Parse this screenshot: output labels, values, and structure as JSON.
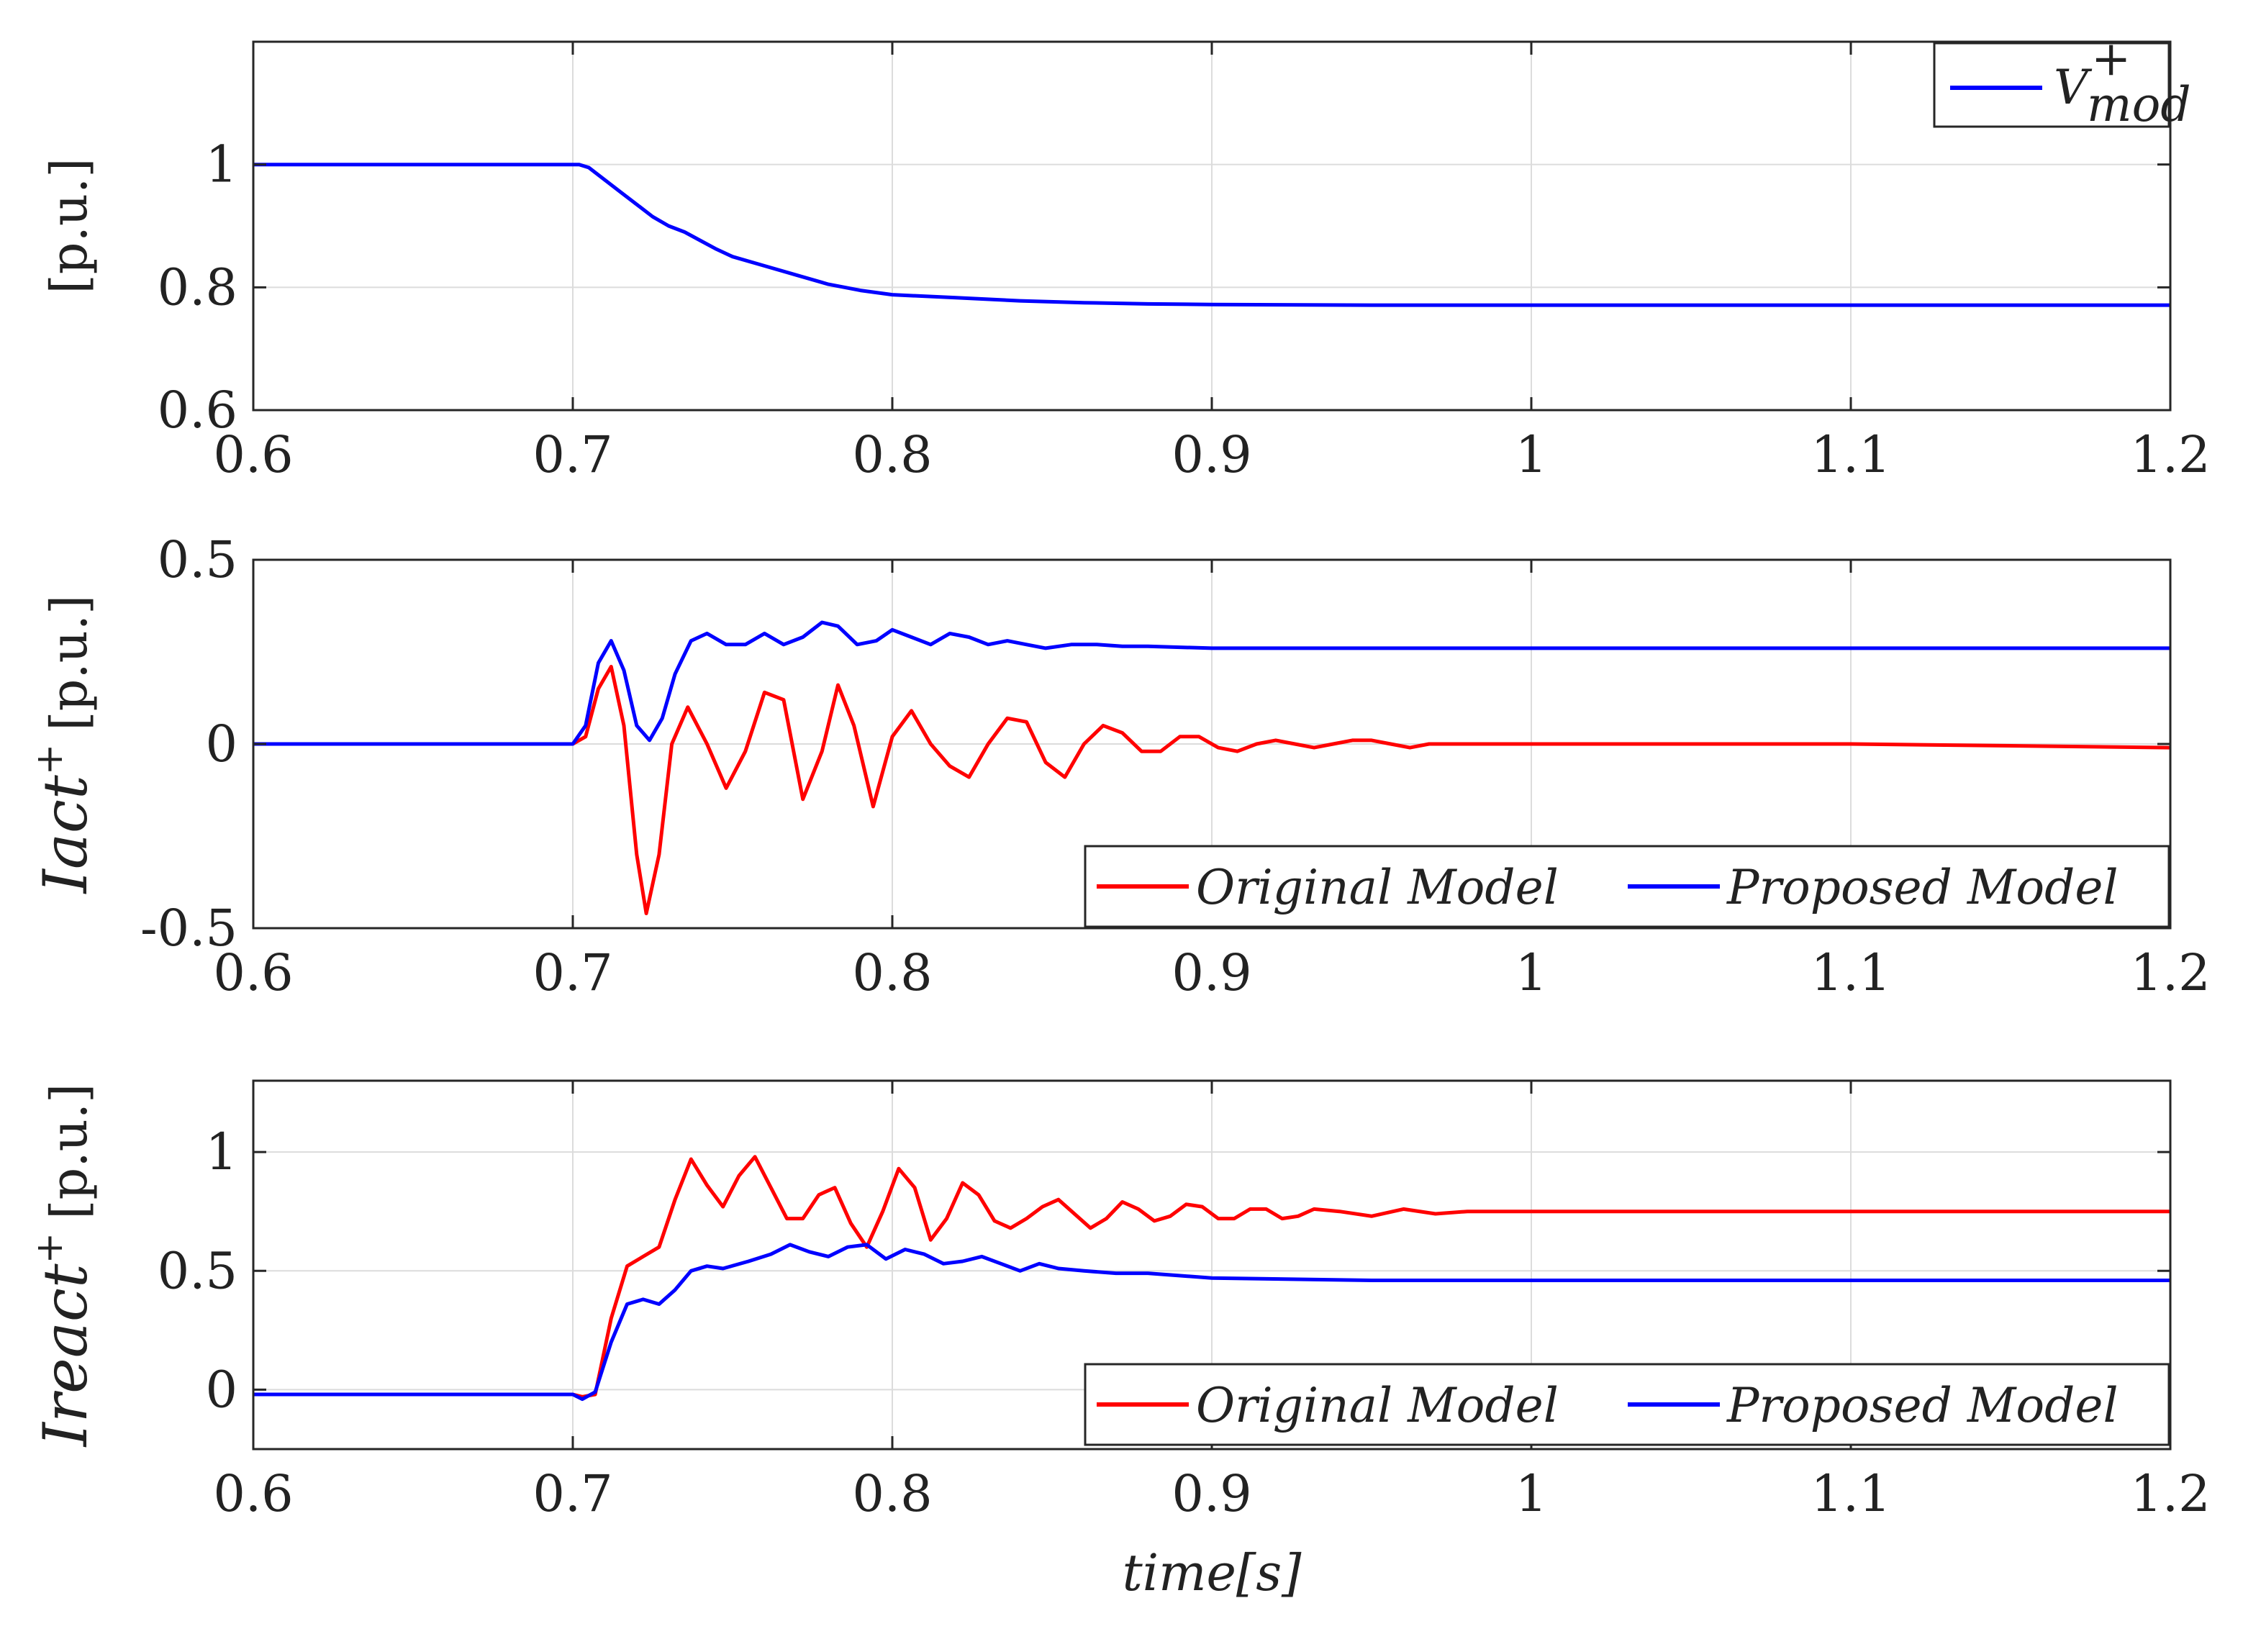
{
  "chart_data": [
    {
      "type": "line",
      "id": "vmod",
      "title": "",
      "xlabel": "",
      "ylabel_main": "[p.u.]",
      "ylabel_prefix": "",
      "ylabel_sup": "",
      "xlim": [
        0.6,
        1.2
      ],
      "ylim": [
        0.6,
        1.2
      ],
      "xticks": [
        0.6,
        0.7,
        0.8,
        0.9,
        1,
        1.1,
        1.2
      ],
      "xtick_labels": [
        "0.6",
        "0.7",
        "0.8",
        "0.9",
        "1",
        "1.1",
        "1.2"
      ],
      "yticks": [
        0.6,
        0.8,
        1
      ],
      "ytick_labels": [
        "0.6",
        "0.8",
        "1"
      ],
      "grid": true,
      "legend_position": "top-right",
      "series": [
        {
          "name": "V",
          "legend_label": "V",
          "legend_sup": "+",
          "legend_sub": "mod",
          "color": "#0000ff",
          "x": [
            0.6,
            0.65,
            0.7,
            0.702,
            0.705,
            0.71,
            0.715,
            0.72,
            0.725,
            0.73,
            0.735,
            0.74,
            0.745,
            0.75,
            0.76,
            0.77,
            0.78,
            0.79,
            0.8,
            0.82,
            0.84,
            0.86,
            0.88,
            0.9,
            0.95,
            1.0,
            1.1,
            1.2
          ],
          "y": [
            1.0,
            1.0,
            1.0,
            1.0,
            0.995,
            0.975,
            0.955,
            0.935,
            0.915,
            0.9,
            0.89,
            0.876,
            0.862,
            0.85,
            0.835,
            0.82,
            0.805,
            0.795,
            0.788,
            0.783,
            0.778,
            0.775,
            0.773,
            0.772,
            0.771,
            0.771,
            0.771,
            0.771
          ]
        }
      ]
    },
    {
      "type": "line",
      "id": "iact",
      "title": "",
      "xlabel": "",
      "ylabel_main": "[p.u.]",
      "ylabel_prefix": "Iact",
      "ylabel_sup": "+",
      "xlim": [
        0.6,
        1.2
      ],
      "ylim": [
        -0.5,
        0.5
      ],
      "xticks": [
        0.6,
        0.7,
        0.8,
        0.9,
        1,
        1.1,
        1.2
      ],
      "xtick_labels": [
        "0.6",
        "0.7",
        "0.8",
        "0.9",
        "1",
        "1.1",
        "1.2"
      ],
      "yticks": [
        -0.5,
        0,
        0.5
      ],
      "ytick_labels": [
        "-0.5",
        "0",
        "0.5"
      ],
      "grid": true,
      "legend_position": "bottom-right",
      "series": [
        {
          "name": "Original Model",
          "legend_label": "Original Model",
          "color": "#ff0000",
          "x": [
            0.6,
            0.65,
            0.7,
            0.704,
            0.708,
            0.712,
            0.716,
            0.72,
            0.723,
            0.727,
            0.731,
            0.736,
            0.742,
            0.748,
            0.754,
            0.76,
            0.766,
            0.772,
            0.778,
            0.783,
            0.788,
            0.794,
            0.8,
            0.806,
            0.812,
            0.818,
            0.824,
            0.83,
            0.836,
            0.842,
            0.848,
            0.854,
            0.86,
            0.866,
            0.872,
            0.878,
            0.884,
            0.89,
            0.896,
            0.902,
            0.908,
            0.914,
            0.92,
            0.926,
            0.932,
            0.938,
            0.944,
            0.95,
            0.956,
            0.962,
            0.968,
            0.974,
            0.98,
            0.99,
            1.0,
            1.1,
            1.2
          ],
          "y": [
            0.0,
            0.0,
            0.0,
            0.02,
            0.15,
            0.21,
            0.05,
            -0.3,
            -0.46,
            -0.3,
            0.0,
            0.1,
            0.0,
            -0.12,
            -0.02,
            0.14,
            0.12,
            -0.15,
            -0.02,
            0.16,
            0.05,
            -0.17,
            0.02,
            0.09,
            0.0,
            -0.06,
            -0.09,
            0.0,
            0.07,
            0.06,
            -0.05,
            -0.09,
            0.0,
            0.05,
            0.03,
            -0.02,
            -0.02,
            0.02,
            0.02,
            -0.01,
            -0.02,
            0.0,
            0.01,
            0.0,
            -0.01,
            0.0,
            0.01,
            0.01,
            0.0,
            -0.01,
            0.0,
            0.0,
            0.0,
            0.0,
            0.0,
            0.0,
            -0.01
          ]
        },
        {
          "name": "Proposed Model",
          "legend_label": "Proposed Model",
          "color": "#0000ff",
          "x": [
            0.6,
            0.65,
            0.7,
            0.704,
            0.708,
            0.712,
            0.716,
            0.72,
            0.724,
            0.728,
            0.732,
            0.737,
            0.742,
            0.748,
            0.754,
            0.76,
            0.766,
            0.772,
            0.778,
            0.783,
            0.789,
            0.795,
            0.8,
            0.806,
            0.812,
            0.818,
            0.824,
            0.83,
            0.836,
            0.842,
            0.848,
            0.856,
            0.864,
            0.872,
            0.88,
            0.9,
            1.0,
            1.1,
            1.2
          ],
          "y": [
            0.0,
            0.0,
            0.0,
            0.05,
            0.22,
            0.28,
            0.2,
            0.05,
            0.01,
            0.07,
            0.19,
            0.28,
            0.3,
            0.27,
            0.27,
            0.3,
            0.27,
            0.29,
            0.33,
            0.32,
            0.27,
            0.28,
            0.31,
            0.29,
            0.27,
            0.3,
            0.29,
            0.27,
            0.28,
            0.27,
            0.26,
            0.27,
            0.27,
            0.265,
            0.265,
            0.26,
            0.26,
            0.26,
            0.26
          ]
        }
      ]
    },
    {
      "type": "line",
      "id": "ireact",
      "title": "",
      "xlabel": "time[s]",
      "ylabel_main": "[p.u.]",
      "ylabel_prefix": "Ireact",
      "ylabel_sup": "+",
      "xlim": [
        0.6,
        1.2
      ],
      "ylim": [
        -0.25,
        1.3
      ],
      "xticks": [
        0.6,
        0.7,
        0.8,
        0.9,
        1,
        1.1,
        1.2
      ],
      "xtick_labels": [
        "0.6",
        "0.7",
        "0.8",
        "0.9",
        "1",
        "1.1",
        "1.2"
      ],
      "yticks": [
        0,
        0.5,
        1
      ],
      "ytick_labels": [
        "0",
        "0.5",
        "1"
      ],
      "grid": true,
      "legend_position": "bottom-right",
      "series": [
        {
          "name": "Original Model",
          "legend_label": "Original Model",
          "color": "#ff0000",
          "x": [
            0.6,
            0.65,
            0.7,
            0.703,
            0.707,
            0.712,
            0.717,
            0.722,
            0.727,
            0.732,
            0.737,
            0.742,
            0.747,
            0.752,
            0.757,
            0.762,
            0.767,
            0.772,
            0.777,
            0.782,
            0.787,
            0.792,
            0.797,
            0.802,
            0.807,
            0.812,
            0.817,
            0.822,
            0.827,
            0.832,
            0.837,
            0.842,
            0.847,
            0.852,
            0.857,
            0.862,
            0.867,
            0.872,
            0.877,
            0.882,
            0.887,
            0.892,
            0.897,
            0.902,
            0.907,
            0.912,
            0.917,
            0.922,
            0.927,
            0.932,
            0.94,
            0.95,
            0.96,
            0.97,
            0.98,
            1.0,
            1.05,
            1.1,
            1.2
          ],
          "y": [
            -0.02,
            -0.02,
            -0.02,
            -0.03,
            -0.02,
            0.3,
            0.52,
            0.56,
            0.6,
            0.8,
            0.97,
            0.86,
            0.77,
            0.9,
            0.98,
            0.85,
            0.72,
            0.72,
            0.82,
            0.85,
            0.7,
            0.6,
            0.75,
            0.93,
            0.85,
            0.63,
            0.72,
            0.87,
            0.82,
            0.71,
            0.68,
            0.72,
            0.77,
            0.8,
            0.74,
            0.68,
            0.72,
            0.79,
            0.76,
            0.71,
            0.73,
            0.78,
            0.77,
            0.72,
            0.72,
            0.76,
            0.76,
            0.72,
            0.73,
            0.76,
            0.75,
            0.73,
            0.76,
            0.74,
            0.75,
            0.75,
            0.75,
            0.75,
            0.75
          ]
        },
        {
          "name": "Proposed Model",
          "legend_label": "Proposed Model",
          "color": "#0000ff",
          "x": [
            0.6,
            0.65,
            0.7,
            0.703,
            0.707,
            0.712,
            0.717,
            0.722,
            0.727,
            0.732,
            0.737,
            0.742,
            0.747,
            0.755,
            0.762,
            0.768,
            0.774,
            0.78,
            0.786,
            0.792,
            0.798,
            0.804,
            0.81,
            0.816,
            0.822,
            0.828,
            0.834,
            0.84,
            0.846,
            0.852,
            0.86,
            0.87,
            0.88,
            0.9,
            0.95,
            1.0,
            1.1,
            1.2
          ],
          "y": [
            -0.02,
            -0.02,
            -0.02,
            -0.04,
            -0.01,
            0.2,
            0.36,
            0.38,
            0.36,
            0.42,
            0.5,
            0.52,
            0.51,
            0.54,
            0.57,
            0.61,
            0.58,
            0.56,
            0.6,
            0.61,
            0.55,
            0.59,
            0.57,
            0.53,
            0.54,
            0.56,
            0.53,
            0.5,
            0.53,
            0.51,
            0.5,
            0.49,
            0.49,
            0.47,
            0.46,
            0.46,
            0.46,
            0.46
          ]
        }
      ]
    }
  ]
}
